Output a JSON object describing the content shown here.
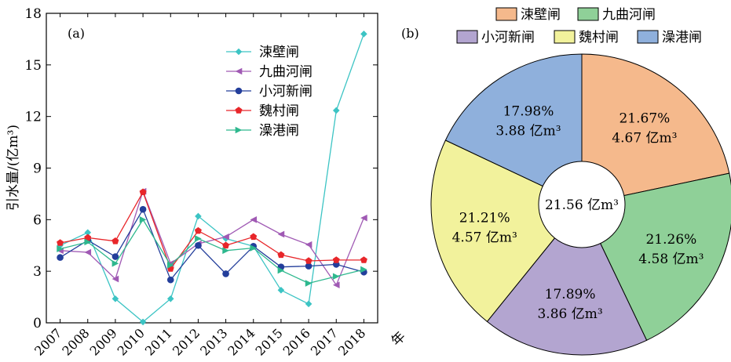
{
  "chart_data": [
    {
      "type": "line",
      "panel_label": "(a)",
      "ylabel": "引水量/(亿m³)",
      "x_unit": "年",
      "categories": [
        "2007",
        "2008",
        "2009",
        "2010",
        "2011",
        "2012",
        "2013",
        "2014",
        "2015",
        "2016",
        "2017",
        "2018"
      ],
      "ylim": [
        0,
        18
      ],
      "yticks": [
        0,
        3,
        6,
        9,
        12,
        15,
        18
      ],
      "legend_position": "top-right",
      "grid": false,
      "series": [
        {
          "name": "涑壁闸",
          "color": "#3cc4c4",
          "marker": "diamond",
          "values": [
            4.5,
            5.25,
            1.4,
            0.05,
            1.4,
            6.2,
            4.9,
            4.45,
            1.9,
            1.1,
            12.35,
            16.8
          ]
        },
        {
          "name": "九曲河闸",
          "color": "#a05ab4",
          "marker": "triangle-left",
          "values": [
            4.2,
            4.1,
            2.55,
            7.65,
            3.45,
            4.6,
            5.0,
            6.0,
            5.15,
            4.55,
            2.2,
            6.1
          ]
        },
        {
          "name": "小河新闸",
          "color": "#233e9b",
          "marker": "circle",
          "values": [
            3.8,
            4.8,
            3.85,
            6.6,
            2.5,
            4.5,
            2.85,
            4.45,
            3.25,
            3.3,
            3.4,
            2.95
          ]
        },
        {
          "name": "魏村闸",
          "color": "#e8262a",
          "marker": "pentagon",
          "values": [
            4.65,
            4.95,
            4.75,
            7.6,
            3.15,
            5.35,
            4.5,
            5.0,
            3.95,
            3.6,
            3.65,
            3.65
          ]
        },
        {
          "name": "澡港闸",
          "color": "#2eb88e",
          "marker": "triangle-right",
          "values": [
            4.3,
            4.7,
            3.45,
            6.0,
            3.35,
            4.9,
            4.2,
            4.35,
            3.05,
            2.3,
            2.7,
            3.1
          ]
        }
      ]
    },
    {
      "type": "pie",
      "panel_label": "(b)",
      "center_label": "21.56 亿m³",
      "legend_position": "top",
      "slices": [
        {
          "name": "涑壁闸",
          "percent": 21.67,
          "percent_label": "21.67%",
          "value": 4.67,
          "value_label": "4.67 亿m³",
          "color": "#f5b98c"
        },
        {
          "name": "九曲河闸",
          "percent": 21.26,
          "percent_label": "21.26%",
          "value": 4.58,
          "value_label": "4.58 亿m³",
          "color": "#8fd098"
        },
        {
          "name": "小河新闸",
          "percent": 17.89,
          "percent_label": "17.89%",
          "value": 3.86,
          "value_label": "3.86 亿m³",
          "color": "#b3a5d0"
        },
        {
          "name": "魏村闸",
          "percent": 21.21,
          "percent_label": "21.21%",
          "value": 4.57,
          "value_label": "4.57 亿m³",
          "color": "#f2f29c"
        },
        {
          "name": "澡港闸",
          "percent": 17.98,
          "percent_label": "17.98%",
          "value": 3.88,
          "value_label": "3.88 亿m³",
          "color": "#8fb0dc"
        }
      ]
    }
  ]
}
